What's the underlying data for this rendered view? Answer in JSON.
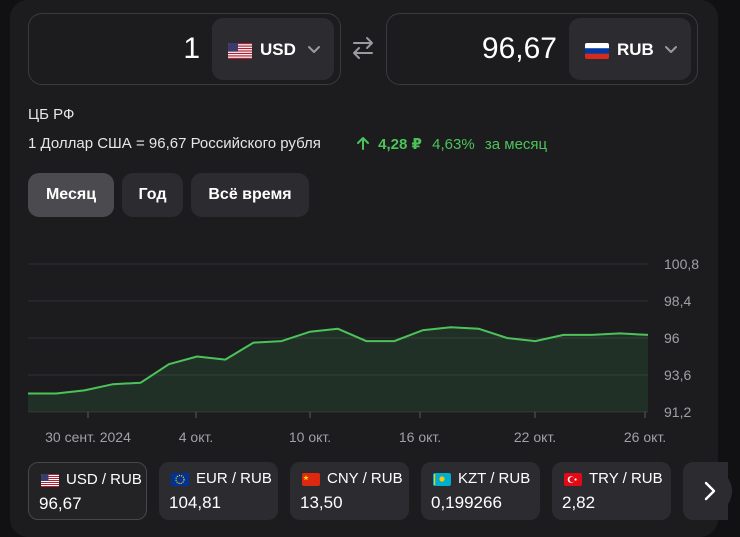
{
  "converter": {
    "from": {
      "amount": "1",
      "code": "USD",
      "flag": "us-flag-icon"
    },
    "to": {
      "amount": "96,67",
      "code": "RUB",
      "flag": "ru-flag-icon"
    }
  },
  "source": "ЦБ РФ",
  "rate_text": "1 Доллар США = 96,67 Российского рубля",
  "change": {
    "abs": "4,28 ₽",
    "pct": "4,63%",
    "period": "за месяц",
    "color": "#4cc35a"
  },
  "periods": [
    {
      "label": "Месяц",
      "active": true
    },
    {
      "label": "Год",
      "active": false
    },
    {
      "label": "Всё время",
      "active": false
    }
  ],
  "chart_data": {
    "type": "area",
    "x_tick_labels": [
      "30 сент. 2024",
      "4 окт.",
      "10 окт.",
      "16 окт.",
      "22 окт.",
      "26 окт."
    ],
    "y_tick_labels": [
      "100,8",
      "98,4",
      "96",
      "93,6",
      "91,2"
    ],
    "ylim": [
      91.2,
      100.8
    ],
    "values": [
      92.4,
      92.4,
      92.6,
      93.0,
      93.1,
      94.3,
      94.8,
      94.6,
      95.7,
      95.8,
      96.4,
      96.6,
      95.8,
      95.8,
      96.5,
      96.7,
      96.6,
      96.0,
      95.8,
      96.2,
      96.2,
      96.3,
      96.2
    ],
    "line_color": "#4cc35a",
    "grid": true
  },
  "tiles": [
    {
      "pair": "USD / RUB",
      "value": "96,67",
      "flag": "us-flag-icon",
      "active": true
    },
    {
      "pair": "EUR / RUB",
      "value": "104,81",
      "flag": "eu-flag-icon",
      "active": false
    },
    {
      "pair": "CNY / RUB",
      "value": "13,50",
      "flag": "cn-flag-icon",
      "active": false
    },
    {
      "pair": "KZT / RUB",
      "value": "0,199266",
      "flag": "kz-flag-icon",
      "active": false
    },
    {
      "pair": "TRY / RUB",
      "value": "2,82",
      "flag": "tr-flag-icon",
      "active": false
    }
  ]
}
